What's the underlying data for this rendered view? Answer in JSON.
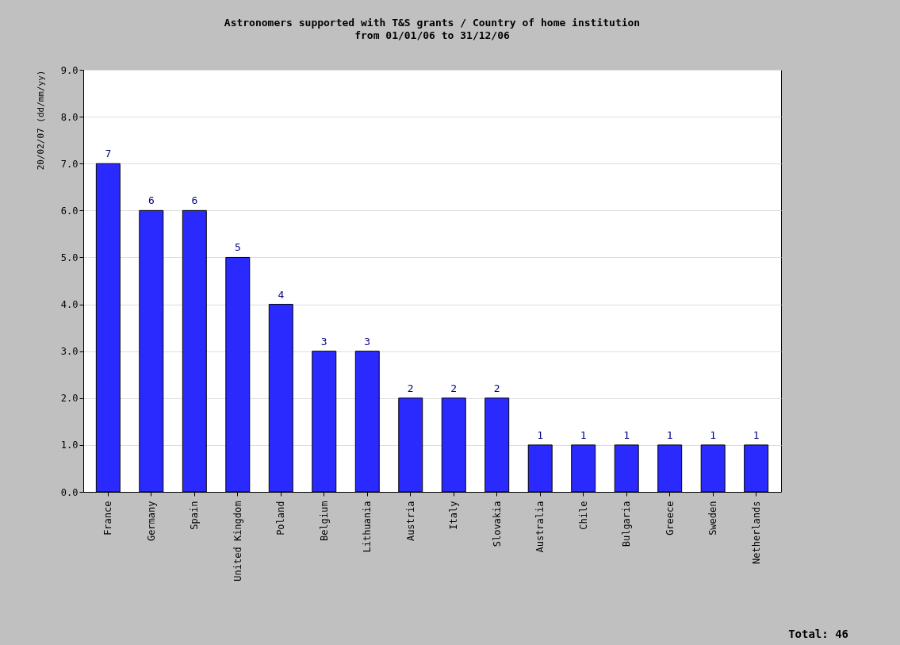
{
  "chart_data": {
    "type": "bar",
    "title": "Astronomers supported with T&S grants / Country of home institution",
    "subtitle": "from 01/01/06 to 31/12/06",
    "ylabel": "20/02/07  (dd/mm/yy)",
    "categories": [
      "France",
      "Germany",
      "Spain",
      "United Kingdom",
      "Poland",
      "Belgium",
      "Lithuania",
      "Austria",
      "Italy",
      "Slovakia",
      "Australia",
      "Chile",
      "Bulgaria",
      "Greece",
      "Sweden",
      "Netherlands"
    ],
    "values": [
      7,
      6,
      6,
      5,
      4,
      3,
      3,
      2,
      2,
      2,
      1,
      1,
      1,
      1,
      1,
      1
    ],
    "color": "#2a2aff",
    "ylim": [
      0,
      9
    ],
    "yticks": [
      {
        "value": 0,
        "label": "0.0"
      },
      {
        "value": 1,
        "label": "1.0"
      },
      {
        "value": 2,
        "label": "2.0"
      },
      {
        "value": 3,
        "label": "3.0"
      },
      {
        "value": 4,
        "label": "4.0"
      },
      {
        "value": 5,
        "label": "5.0"
      },
      {
        "value": 6,
        "label": "6.0"
      },
      {
        "value": 7,
        "label": "7.0"
      },
      {
        "value": 8,
        "label": "8.0"
      },
      {
        "value": 9,
        "label": "9.0"
      }
    ],
    "grid": "y",
    "data_labels": true,
    "annotations": [
      "Total: 46"
    ]
  }
}
